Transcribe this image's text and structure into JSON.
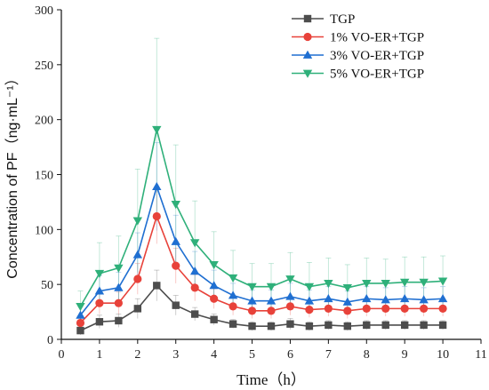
{
  "chart_data": {
    "type": "line",
    "xlabel": "Time（h）",
    "ylabel": "Concentration of PF（ng·mL⁻¹）",
    "xlim": [
      0,
      11
    ],
    "ylim": [
      0,
      300
    ],
    "xticks": [
      0,
      1,
      2,
      3,
      4,
      5,
      6,
      7,
      8,
      9,
      10,
      11
    ],
    "yticks": [
      0,
      50,
      100,
      150,
      200,
      250,
      300
    ],
    "legend_position": "top-right",
    "grid": false,
    "x": [
      0.5,
      1,
      1.5,
      2,
      2.5,
      3,
      3.5,
      4,
      4.5,
      5,
      5.5,
      6,
      6.5,
      7,
      7.5,
      8,
      8.5,
      9,
      9.5,
      10
    ],
    "series": [
      {
        "name": "TGP",
        "color": "#4d4d4d",
        "marker": "square",
        "values": [
          8,
          16,
          17,
          28,
          49,
          31,
          23,
          18,
          14,
          12,
          12,
          14,
          12,
          13,
          12,
          13,
          13,
          13,
          13,
          13
        ],
        "error": [
          4,
          6,
          6,
          9,
          14,
          9,
          6,
          5,
          4,
          4,
          4,
          5,
          4,
          4,
          4,
          4,
          4,
          4,
          4,
          4
        ]
      },
      {
        "name": "1% VO-ER+TGP",
        "color": "#e8423a",
        "marker": "circle",
        "values": [
          15,
          33,
          33,
          55,
          112,
          67,
          47,
          37,
          30,
          26,
          26,
          30,
          27,
          28,
          26,
          28,
          28,
          28,
          28,
          28
        ],
        "error": [
          6,
          10,
          10,
          14,
          25,
          16,
          12,
          9,
          8,
          7,
          7,
          8,
          7,
          7,
          7,
          7,
          7,
          7,
          7,
          7
        ]
      },
      {
        "name": "3% VO-ER+TGP",
        "color": "#1f6fd1",
        "marker": "triangle-up",
        "values": [
          22,
          44,
          47,
          77,
          139,
          89,
          62,
          49,
          40,
          35,
          35,
          39,
          35,
          37,
          34,
          37,
          36,
          37,
          36,
          37
        ],
        "error": [
          8,
          14,
          14,
          20,
          40,
          24,
          18,
          14,
          11,
          10,
          10,
          12,
          10,
          11,
          10,
          11,
          11,
          11,
          11,
          11
        ]
      },
      {
        "name": "5% VO-ER+TGP",
        "color": "#2fb07a",
        "marker": "triangle-down",
        "values": [
          30,
          60,
          65,
          108,
          191,
          123,
          88,
          68,
          56,
          48,
          48,
          55,
          48,
          51,
          47,
          51,
          51,
          52,
          52,
          53
        ],
        "error": [
          14,
          28,
          29,
          47,
          83,
          54,
          38,
          30,
          25,
          21,
          21,
          24,
          22,
          23,
          21,
          23,
          22,
          23,
          23,
          23
        ]
      }
    ]
  }
}
